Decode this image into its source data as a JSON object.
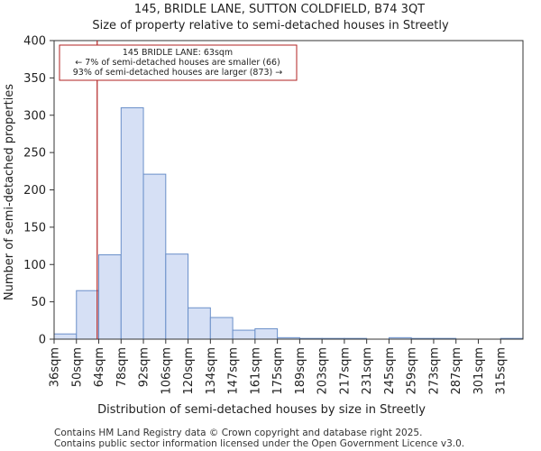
{
  "chart_data": {
    "type": "bar",
    "title": "145, BRIDLE LANE, SUTTON COLDFIELD, B74 3QT",
    "subtitle": "Size of property relative to semi-detached houses in Streetly",
    "xlabel": "Distribution of semi-detached houses by size in Streetly",
    "ylabel": "Number of semi-detached properties",
    "ylim": [
      0,
      400
    ],
    "yticks": [
      0,
      50,
      100,
      150,
      200,
      250,
      300,
      350,
      400
    ],
    "categories": [
      "36sqm",
      "50sqm",
      "64sqm",
      "78sqm",
      "92sqm",
      "106sqm",
      "120sqm",
      "134sqm",
      "147sqm",
      "161sqm",
      "175sqm",
      "189sqm",
      "203sqm",
      "217sqm",
      "231sqm",
      "245sqm",
      "259sqm",
      "273sqm",
      "287sqm",
      "301sqm",
      "315sqm"
    ],
    "values": [
      7,
      65,
      113,
      310,
      221,
      114,
      42,
      29,
      12,
      14,
      2,
      1,
      1,
      1,
      0,
      2,
      1,
      1,
      0,
      0,
      1
    ],
    "marker": {
      "label": "145 BRIDLE LANE: 63sqm",
      "value_bin_position": 1.93
    },
    "annotation": {
      "line1": "145 BRIDLE LANE: 63sqm",
      "line2": "← 7% of semi-detached houses are smaller (66)",
      "line3": "93% of semi-detached houses are larger (873) →"
    },
    "bar_fill": "#d6e0f5",
    "bar_stroke": "#6a8fc9",
    "marker_color": "#b22222",
    "grid": false
  },
  "footer": {
    "line1": "Contains HM Land Registry data © Crown copyright and database right 2025.",
    "line2": "Contains public sector information licensed under the Open Government Licence v3.0."
  }
}
